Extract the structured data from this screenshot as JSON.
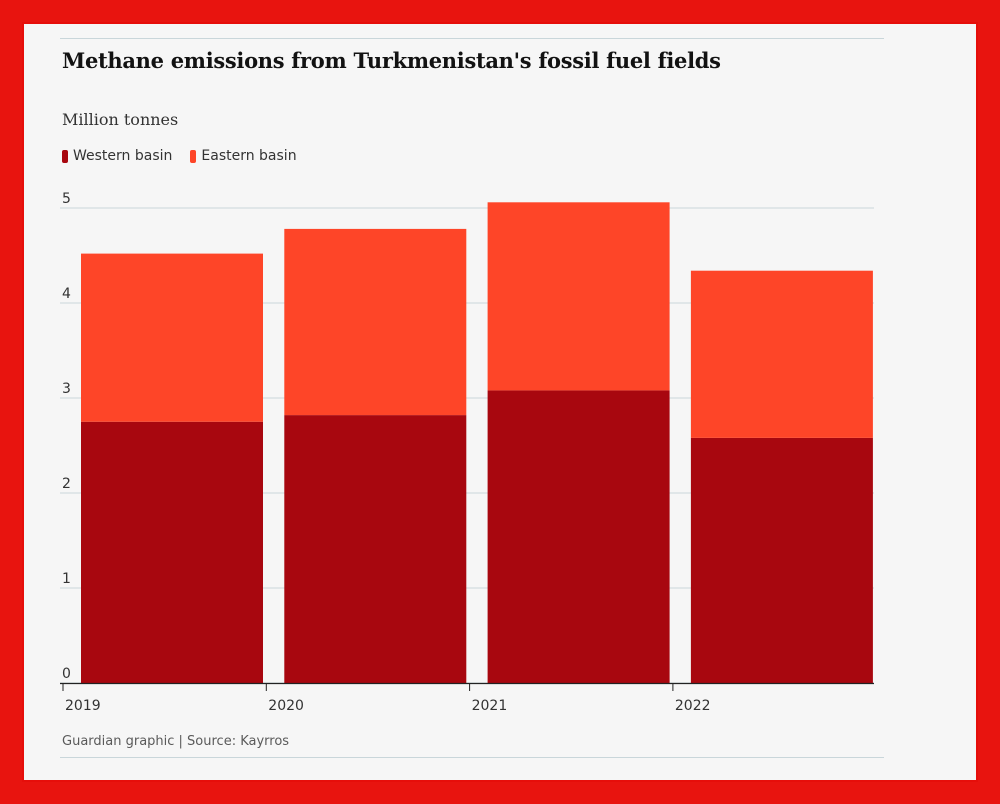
{
  "title": "Methane emissions from Turkmenistan's fossil fuel fields",
  "unit_label": "Million tonnes",
  "source": "Guardian graphic | Source: Kayrros",
  "colors": {
    "western": "#a8070f",
    "eastern": "#fe4528",
    "frame": "#e60e0a",
    "grid": "#c9d6da"
  },
  "chart_data": {
    "type": "bar",
    "stacked": true,
    "title": "Methane emissions from Turkmenistan's fossil fuel fields",
    "ylabel": "Million tonnes",
    "categories": [
      "2019",
      "2020",
      "2021",
      "2022"
    ],
    "series": [
      {
        "name": "Western basin",
        "values": [
          2.75,
          2.82,
          3.08,
          2.58
        ]
      },
      {
        "name": "Eastern basin",
        "values": [
          1.77,
          1.96,
          1.98,
          1.76
        ]
      }
    ],
    "ylim": [
      0,
      5
    ],
    "yticks": [
      0,
      1,
      2,
      3,
      4,
      5
    ],
    "grid": true,
    "legend": "top-left"
  }
}
